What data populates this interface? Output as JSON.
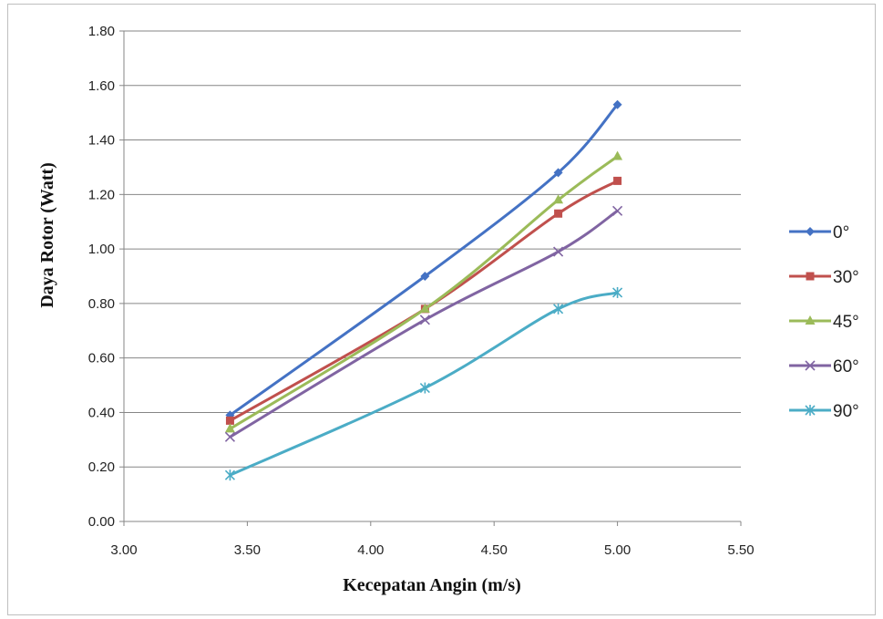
{
  "chart_data": {
    "type": "line",
    "title": "",
    "xlabel": "Kecepatan Angin (m/s)",
    "ylabel": "Daya Rotor  (Watt)",
    "xlim": [
      3.0,
      5.5
    ],
    "ylim": [
      0.0,
      1.8
    ],
    "x_ticks": [
      "3.00",
      "3.50",
      "4.00",
      "4.50",
      "5.00",
      "5.50"
    ],
    "y_ticks": [
      "0.00",
      "0.20",
      "0.40",
      "0.60",
      "0.80",
      "1.00",
      "1.20",
      "1.40",
      "1.60",
      "1.80"
    ],
    "grid": "horizontal",
    "legend_position": "right",
    "x": [
      3.43,
      4.22,
      4.76,
      5.0
    ],
    "series": [
      {
        "name": "0°",
        "color": "#4472C4",
        "marker": "diamond",
        "values": [
          0.39,
          0.9,
          1.28,
          1.53
        ]
      },
      {
        "name": "30°",
        "color": "#C0504D",
        "marker": "square",
        "values": [
          0.37,
          0.78,
          1.13,
          1.25
        ]
      },
      {
        "name": "45°",
        "color": "#9BBB59",
        "marker": "triangle",
        "values": [
          0.34,
          0.78,
          1.18,
          1.34
        ]
      },
      {
        "name": "60°",
        "color": "#8064A2",
        "marker": "x",
        "values": [
          0.31,
          0.74,
          0.99,
          1.14
        ]
      },
      {
        "name": "90°",
        "color": "#4BACC6",
        "marker": "star",
        "values": [
          0.17,
          0.49,
          0.78,
          0.84
        ]
      }
    ]
  }
}
